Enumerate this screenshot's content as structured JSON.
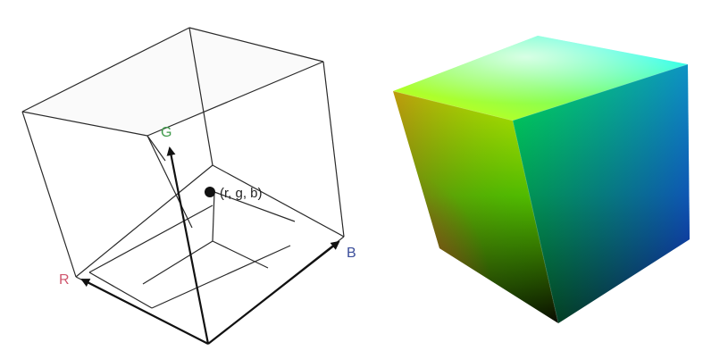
{
  "wireframe_cube": {
    "axes": {
      "r_label": "R",
      "g_label": "G",
      "b_label": "B"
    },
    "point_label": "(r, g, b)",
    "colors": {
      "r_label": "#d0576e",
      "g_label": "#3f9a4a",
      "b_label": "#3a4d9a",
      "edges": "#2a2a2a",
      "face_fill": "#f4f4f4"
    }
  },
  "color_cube": {
    "vertex_colors": {
      "black": "#000000",
      "red": "#c8322a",
      "green": "#00f000",
      "blue": "#1e28f0",
      "yellow": "#ffff00",
      "cyan": "#00ffff",
      "magenta_hidden": "#ff00ff",
      "white": "#ffffff"
    }
  }
}
